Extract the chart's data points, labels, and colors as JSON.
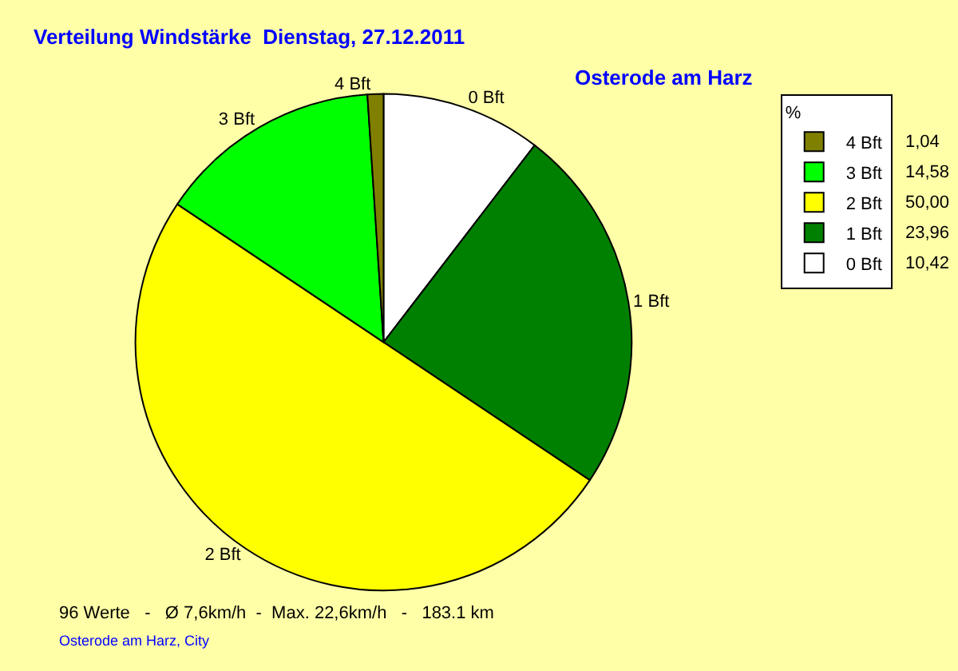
{
  "chart_data": {
    "type": "pie",
    "title": "Verteilung Windstärke  Dienstag, 27.12.2011",
    "subtitle": "Osterode am Harz",
    "legend_title": "%",
    "legend": "top right",
    "categories": [
      "0 Bft",
      "1 Bft",
      "2 Bft",
      "3 Bft",
      "4 Bft"
    ],
    "values": [
      10.42,
      23.96,
      50.0,
      14.58,
      1.04
    ],
    "value_labels": [
      "10,42",
      "23,96",
      "50,00",
      "14,58",
      "1,04"
    ],
    "colors": [
      "#ffffff",
      "#008000",
      "#ffff00",
      "#00ff00",
      "#808000"
    ],
    "annotations": [
      "96 Werte   -   Ø 7,6km/h  -  Max. 22,6km/h   -   183.1 km",
      "Osterode am Harz, City"
    ]
  }
}
